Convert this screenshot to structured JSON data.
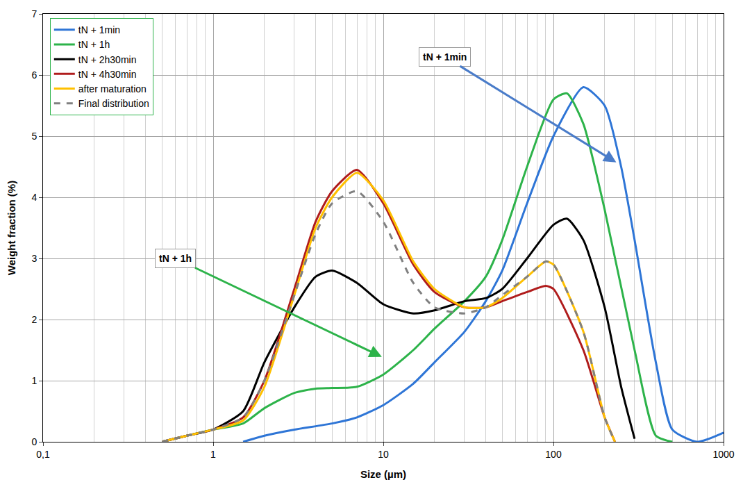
{
  "chart_data": {
    "type": "line",
    "x_title": "Size (µm)",
    "y_title": "Weight fraction (%)",
    "log": "x",
    "grid": true,
    "legend": "top-left",
    "xlim": [
      0.1,
      1000
    ],
    "xticks": [
      {
        "value": 0.1,
        "label": "0,1"
      },
      1,
      10,
      100,
      1000
    ],
    "ylim": [
      0,
      7
    ],
    "yticks": [
      0,
      1,
      2,
      3,
      4,
      5,
      6,
      7
    ],
    "series": [
      {
        "name": "tN + 1min",
        "color": "#2e75d6",
        "line_style": "solid",
        "x": [
          1.5,
          2,
          3,
          5,
          7,
          10,
          15,
          20,
          30,
          40,
          50,
          70,
          100,
          150,
          200,
          250,
          300,
          400,
          500,
          700,
          1000
        ],
        "values": [
          0,
          0.1,
          0.2,
          0.3,
          0.4,
          0.6,
          0.95,
          1.3,
          1.8,
          2.3,
          2.8,
          3.9,
          5.0,
          5.8,
          5.5,
          4.5,
          3.3,
          1.3,
          0.2,
          0,
          0.15
        ]
      },
      {
        "name": "tN + 1h",
        "color": "#2db34a",
        "line_style": "solid",
        "x": [
          0.5,
          0.7,
          1,
          1.5,
          2,
          3,
          4,
          5,
          7,
          10,
          15,
          20,
          30,
          40,
          50,
          70,
          100,
          120,
          150,
          200,
          300,
          400,
          500
        ],
        "values": [
          0,
          0.1,
          0.2,
          0.3,
          0.55,
          0.8,
          0.87,
          0.88,
          0.9,
          1.1,
          1.5,
          1.85,
          2.3,
          2.7,
          3.3,
          4.5,
          5.6,
          5.7,
          5.2,
          3.8,
          1.5,
          0.1,
          0
        ]
      },
      {
        "name": "tN + 2h30min",
        "color": "#000000",
        "line_style": "solid",
        "x": [
          0.5,
          0.7,
          1,
          1.5,
          2,
          3,
          4,
          5,
          7,
          10,
          15,
          20,
          30,
          40,
          50,
          70,
          100,
          120,
          150,
          200,
          250,
          300
        ],
        "values": [
          0,
          0.1,
          0.2,
          0.5,
          1.3,
          2.2,
          2.7,
          2.8,
          2.6,
          2.25,
          2.1,
          2.15,
          2.3,
          2.35,
          2.5,
          3.0,
          3.55,
          3.65,
          3.3,
          2.2,
          0.9,
          0.05
        ]
      },
      {
        "name": "tN + 4h30min",
        "color": "#b01c1c",
        "line_style": "solid",
        "x": [
          0.5,
          0.7,
          1,
          1.5,
          2,
          3,
          4,
          5,
          7,
          10,
          15,
          20,
          30,
          40,
          50,
          70,
          90,
          100,
          150,
          200,
          230
        ],
        "values": [
          0,
          0.1,
          0.2,
          0.4,
          1.0,
          2.5,
          3.6,
          4.1,
          4.45,
          3.9,
          2.9,
          2.45,
          2.2,
          2.2,
          2.3,
          2.45,
          2.55,
          2.5,
          1.5,
          0.4,
          0
        ]
      },
      {
        "name": "after maturation",
        "color": "#ffc000",
        "line_style": "solid",
        "x": [
          0.5,
          0.7,
          1,
          1.5,
          2,
          3,
          4,
          5,
          7,
          10,
          15,
          20,
          30,
          40,
          50,
          70,
          90,
          100,
          150,
          200,
          230
        ],
        "values": [
          0,
          0.1,
          0.2,
          0.35,
          0.9,
          2.4,
          3.5,
          4.0,
          4.4,
          3.95,
          2.95,
          2.5,
          2.2,
          2.2,
          2.35,
          2.7,
          2.95,
          2.9,
          1.8,
          0.4,
          0
        ]
      },
      {
        "name": "Final distribution",
        "color": "#808080",
        "line_style": "dash",
        "x": [
          0.5,
          0.7,
          1,
          1.5,
          2,
          3,
          4,
          5,
          7,
          10,
          15,
          20,
          30,
          40,
          50,
          70,
          90,
          100,
          150,
          200,
          230
        ],
        "values": [
          0,
          0.1,
          0.2,
          0.4,
          1.0,
          2.4,
          3.4,
          3.9,
          4.1,
          3.6,
          2.6,
          2.2,
          2.1,
          2.2,
          2.4,
          2.7,
          2.95,
          2.9,
          1.8,
          0.4,
          0
        ]
      }
    ],
    "annotations": [
      {
        "text": "tN + 1min",
        "x": 234,
        "y": 4.57,
        "text_x": 23,
        "text_y": 6.3,
        "color": "#4a7cc9"
      },
      {
        "text": "tN + 1h",
        "x": 9.8,
        "y": 1.39,
        "text_x": 0.6,
        "text_y": 3.0,
        "color": "#2db34a"
      }
    ]
  }
}
